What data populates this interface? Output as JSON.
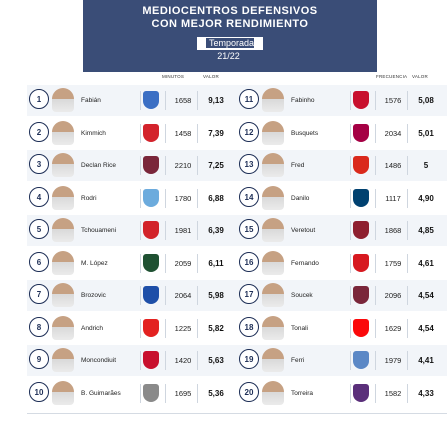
{
  "header": {
    "title_line1": "MEDIOCENTROS DEFENSIVOS",
    "title_line2": "CON MEJOR RENDIMIENTO",
    "season": "Temporada 21/22"
  },
  "columns": {
    "minutes_left": "MINUTOS",
    "value_left": "VALOR",
    "frequency_right": "FRECUENCIA",
    "value_right": "VALOR"
  },
  "left_players": [
    {
      "rank": "1",
      "name": "Fabián",
      "badge_color": "#3b6fc4",
      "minutes": "1658",
      "value": "9,13"
    },
    {
      "rank": "2",
      "name": "Kimmich",
      "badge_color": "#d3232c",
      "minutes": "1458",
      "value": "7,39"
    },
    {
      "rank": "3",
      "name": "Declan Rice",
      "badge_color": "#7a263a",
      "minutes": "2210",
      "value": "7,25"
    },
    {
      "rank": "4",
      "name": "Rodri",
      "badge_color": "#6cabdd",
      "minutes": "1780",
      "value": "6,88"
    },
    {
      "rank": "5",
      "name": "Tchouameni",
      "badge_color": "#d2232a",
      "minutes": "1981",
      "value": "6,39"
    },
    {
      "rank": "6",
      "name": "M. López",
      "badge_color": "#1f5132",
      "minutes": "2059",
      "value": "6,11"
    },
    {
      "rank": "7",
      "name": "Brozovic",
      "badge_color": "#1e4fa8",
      "minutes": "2064",
      "value": "5,98"
    },
    {
      "rank": "8",
      "name": "Andrich",
      "badge_color": "#e32221",
      "minutes": "1225",
      "value": "5,82"
    },
    {
      "rank": "9",
      "name": "Moncondiuit",
      "badge_color": "#c8102e",
      "minutes": "1420",
      "value": "5,63"
    },
    {
      "rank": "10",
      "name": "B. Guimarães",
      "badge_color": "#8a8a8a",
      "minutes": "1695",
      "value": "5,36"
    }
  ],
  "right_players": [
    {
      "rank": "11",
      "name": "Fabinho",
      "badge_color": "#c8102e",
      "frequency": "1576",
      "value": "5,08"
    },
    {
      "rank": "12",
      "name": "Busquets",
      "badge_color": "#a50044",
      "frequency": "2034",
      "value": "5,01"
    },
    {
      "rank": "13",
      "name": "Fred",
      "badge_color": "#da291c",
      "frequency": "1486",
      "value": "5"
    },
    {
      "rank": "14",
      "name": "Danilo",
      "badge_color": "#004170",
      "frequency": "1117",
      "value": "4,90"
    },
    {
      "rank": "15",
      "name": "Veretout",
      "badge_color": "#8e1f2f",
      "frequency": "1868",
      "value": "4,85"
    },
    {
      "rank": "16",
      "name": "Fernando",
      "badge_color": "#d71920",
      "frequency": "1759",
      "value": "4,61"
    },
    {
      "rank": "17",
      "name": "Soucek",
      "badge_color": "#7a263a",
      "frequency": "2096",
      "value": "4,54"
    },
    {
      "rank": "18",
      "name": "Tonali",
      "badge_color": "#fb090b",
      "frequency": "1629",
      "value": "4,54"
    },
    {
      "rank": "19",
      "name": "Ferri",
      "badge_color": "#5b88c6",
      "frequency": "1979",
      "value": "4,41"
    },
    {
      "rank": "20",
      "name": "Torreira",
      "badge_color": "#5a2f7a",
      "frequency": "1582",
      "value": "4,33"
    }
  ]
}
